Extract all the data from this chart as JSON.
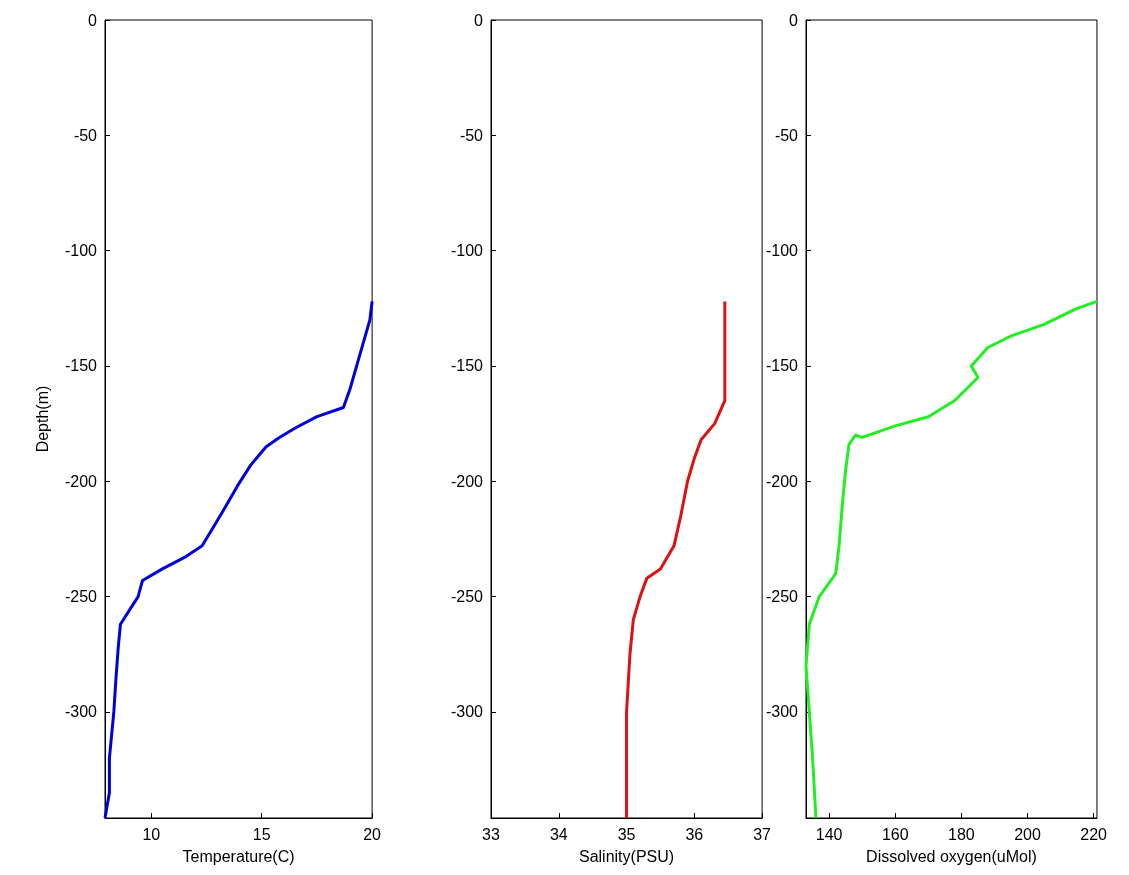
{
  "chart_data": [
    {
      "type": "line",
      "xlabel": "Temperature(C)",
      "ylabel": "Depth(m)",
      "xlim": [
        7.9,
        20
      ],
      "xticks": [
        10,
        15,
        20
      ],
      "ylim": [
        -346,
        0
      ],
      "yticks": [
        0,
        -50,
        -100,
        -150,
        -200,
        -250,
        -300
      ],
      "marker": "none",
      "series": [
        {
          "color": "#0000dd",
          "x": [
            20,
            19.9,
            19.6,
            19.3,
            19,
            18.7,
            17.5,
            16.5,
            15.8,
            15.2,
            14.5,
            13.9,
            13.3,
            12.8,
            12.3,
            11.5,
            10.5,
            9.6,
            9.4,
            9,
            8.6,
            8.5,
            8.4,
            8.3,
            8.1,
            8.1,
            7.9
          ],
          "values": [
            -122,
            -130,
            -140,
            -150,
            -160,
            -168,
            -172,
            -177,
            -181,
            -185,
            -193,
            -202,
            -212,
            -220,
            -228,
            -233,
            -238,
            -243,
            -250,
            -256,
            -262,
            -272,
            -285,
            -300,
            -320,
            -335,
            -346
          ]
        }
      ]
    },
    {
      "type": "line",
      "xlabel": "Salinity(PSU)",
      "xlim": [
        33,
        37
      ],
      "xticks": [
        33,
        34,
        35,
        36,
        37
      ],
      "ylim": [
        -346,
        0
      ],
      "yticks": [
        0,
        -50,
        -100,
        -150,
        -200,
        -250,
        -300
      ],
      "marker": "none",
      "series": [
        {
          "color": "#dd1111",
          "x": [
            36.45,
            36.45,
            36.3,
            36.1,
            36,
            35.9,
            35.8,
            35.7,
            35.5,
            35.3,
            35.2,
            35.1,
            35.05,
            35,
            35
          ],
          "values": [
            -122,
            -165,
            -175,
            -182,
            -190,
            -200,
            -215,
            -228,
            -238,
            -242,
            -250,
            -260,
            -275,
            -300,
            -346
          ]
        }
      ]
    },
    {
      "type": "line",
      "xlabel": "Dissolved oxygen(uMol)",
      "xlim": [
        133,
        221
      ],
      "xticks": [
        140,
        160,
        180,
        200,
        220
      ],
      "ylim": [
        -346,
        0
      ],
      "yticks": [
        0,
        -50,
        -100,
        -150,
        -200,
        -250,
        -300
      ],
      "marker": "none",
      "series": [
        {
          "color": "#22ee22",
          "x": [
            221,
            215,
            205,
            195,
            188,
            183,
            185,
            178,
            170,
            160,
            150,
            148,
            146,
            145,
            144,
            143,
            142,
            137,
            134,
            133,
            134,
            135,
            136
          ],
          "values": [
            -122,
            -125,
            -132,
            -137,
            -142,
            -150,
            -155,
            -165,
            -172,
            -176,
            -181,
            -180,
            -184,
            -195,
            -210,
            -228,
            -240,
            -250,
            -262,
            -280,
            -300,
            -320,
            -346
          ]
        }
      ]
    }
  ]
}
